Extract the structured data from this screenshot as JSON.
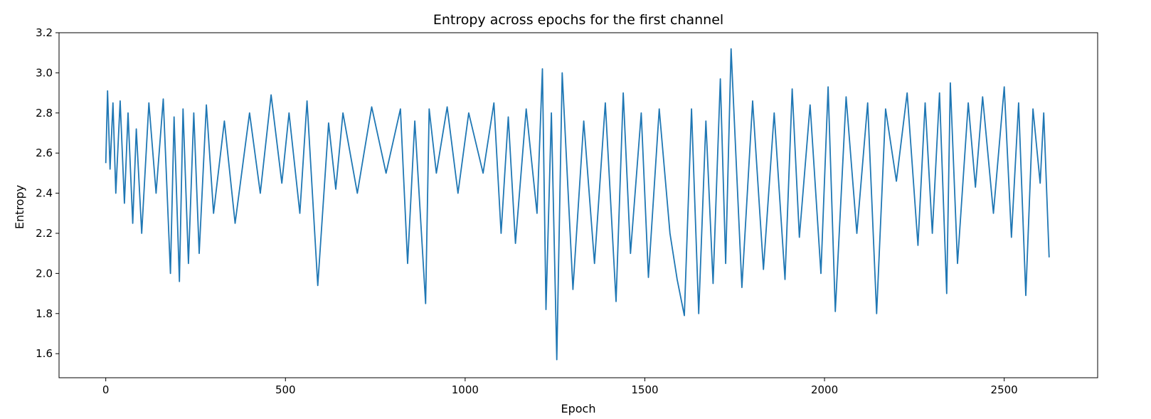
{
  "chart_data": {
    "type": "line",
    "title": "Entropy across epochs for the first channel",
    "xlabel": "Epoch",
    "ylabel": "Entropy",
    "xlim": [
      -130,
      2760
    ],
    "ylim": [
      1.48,
      3.2
    ],
    "grid": false,
    "x_ticks": [
      0,
      500,
      1000,
      1500,
      2000,
      2500
    ],
    "x_tick_labels": [
      "0",
      "500",
      "1000",
      "1500",
      "2000",
      "2500"
    ],
    "y_ticks": [
      1.6,
      1.8,
      2.0,
      2.2,
      2.4,
      2.6,
      2.8,
      3.0,
      3.2
    ],
    "y_tick_labels": [
      "1.6",
      "1.8",
      "2.0",
      "2.2",
      "2.4",
      "2.6",
      "2.8",
      "3.0",
      "3.2"
    ],
    "series": [
      {
        "color": "#1f77b4",
        "x": [
          0,
          5,
          12,
          20,
          28,
          40,
          52,
          62,
          75,
          85,
          100,
          120,
          140,
          160,
          180,
          190,
          205,
          215,
          230,
          245,
          260,
          280,
          300,
          330,
          360,
          400,
          430,
          460,
          490,
          510,
          540,
          560,
          590,
          620,
          640,
          660,
          700,
          740,
          780,
          820,
          840,
          860,
          890,
          900,
          920,
          950,
          980,
          1010,
          1050,
          1080,
          1100,
          1120,
          1140,
          1170,
          1200,
          1215,
          1225,
          1240,
          1255,
          1270,
          1300,
          1330,
          1360,
          1390,
          1420,
          1440,
          1460,
          1490,
          1510,
          1540,
          1570,
          1590,
          1610,
          1630,
          1650,
          1670,
          1690,
          1710,
          1725,
          1740,
          1770,
          1800,
          1830,
          1860,
          1890,
          1910,
          1930,
          1960,
          1990,
          2010,
          2030,
          2060,
          2090,
          2120,
          2145,
          2170,
          2200,
          2230,
          2260,
          2280,
          2300,
          2320,
          2340,
          2350,
          2370,
          2400,
          2420,
          2440,
          2470,
          2500,
          2520,
          2540,
          2560,
          2580,
          2600,
          2610,
          2625
        ],
        "y": [
          2.55,
          2.91,
          2.52,
          2.85,
          2.4,
          2.86,
          2.35,
          2.8,
          2.25,
          2.72,
          2.2,
          2.85,
          2.4,
          2.87,
          2.0,
          2.78,
          1.96,
          2.82,
          2.05,
          2.8,
          2.1,
          2.84,
          2.3,
          2.76,
          2.25,
          2.8,
          2.4,
          2.89,
          2.45,
          2.8,
          2.3,
          2.86,
          1.94,
          2.75,
          2.42,
          2.8,
          2.4,
          2.83,
          2.5,
          2.82,
          2.05,
          2.76,
          1.85,
          2.82,
          2.5,
          2.83,
          2.4,
          2.8,
          2.5,
          2.85,
          2.2,
          2.78,
          2.15,
          2.82,
          2.3,
          3.02,
          1.82,
          2.8,
          1.57,
          3.0,
          1.92,
          2.76,
          2.05,
          2.85,
          1.86,
          2.9,
          2.1,
          2.8,
          1.98,
          2.82,
          2.2,
          1.97,
          1.79,
          2.82,
          1.8,
          2.76,
          1.95,
          2.97,
          2.05,
          3.12,
          1.93,
          2.86,
          2.02,
          2.8,
          1.97,
          2.92,
          2.18,
          2.84,
          2.0,
          2.93,
          1.81,
          2.88,
          2.2,
          2.85,
          1.8,
          2.82,
          2.46,
          2.9,
          2.14,
          2.85,
          2.2,
          2.9,
          1.9,
          2.95,
          2.05,
          2.85,
          2.43,
          2.88,
          2.3,
          2.93,
          2.18,
          2.85,
          1.89,
          2.82,
          2.45,
          2.8,
          2.08
        ]
      }
    ]
  }
}
